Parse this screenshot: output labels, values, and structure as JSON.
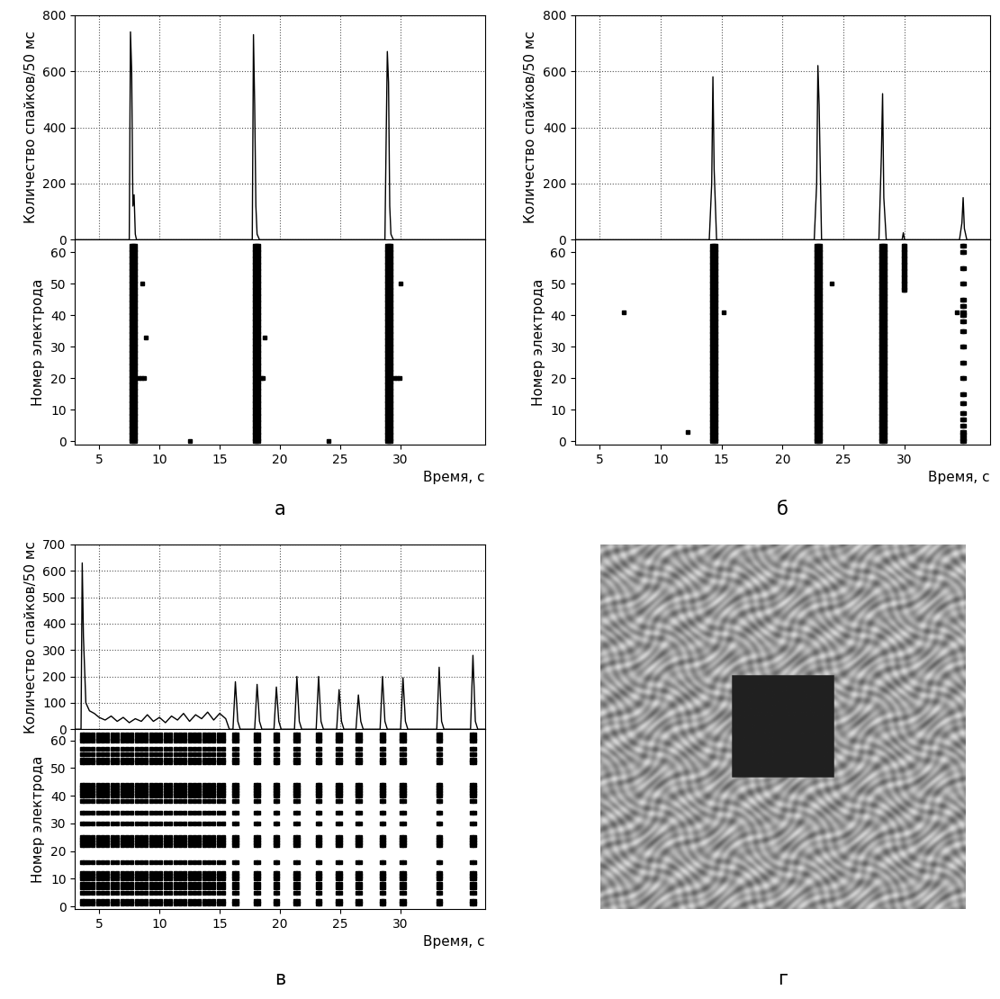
{
  "chart_data": [
    {
      "type": "raster",
      "label": "а",
      "xlabel": "Время, с",
      "xlim": [
        3,
        37
      ],
      "xticks": [
        5,
        10,
        15,
        20,
        25,
        30
      ],
      "histogram": {
        "ylabel": "Количество спайков/50 мс",
        "color": "#000000",
        "grid": true,
        "ylim": [
          0,
          800
        ],
        "yticks": [
          0,
          200,
          400,
          600,
          800
        ],
        "x": [
          3,
          7.5,
          7.6,
          7.7,
          7.8,
          7.9,
          8.0,
          8.1,
          8.3,
          17.7,
          17.8,
          17.9,
          18.0,
          18.1,
          18.3,
          28.7,
          28.8,
          28.9,
          29.0,
          29.1,
          29.2,
          29.4,
          37
        ],
        "values": [
          0,
          0,
          740,
          600,
          120,
          160,
          20,
          0,
          0,
          0,
          730,
          480,
          120,
          20,
          0,
          0,
          350,
          670,
          560,
          120,
          20,
          0,
          0
        ]
      },
      "raster": {
        "ylabel": "Номер электрода",
        "color": "#000000",
        "marker": "square",
        "ylim": [
          -1,
          64
        ],
        "yticks": [
          0,
          10,
          20,
          30,
          40,
          50,
          60
        ],
        "groups": [
          {
            "electrodes": [
              0,
              1,
              2,
              3,
              4,
              5,
              6,
              7,
              8,
              9,
              10,
              11,
              12,
              13,
              14,
              15,
              16,
              17,
              18,
              19,
              20,
              21,
              22,
              23,
              24,
              25,
              26,
              27,
              28,
              29,
              30,
              31,
              32,
              33,
              34,
              35,
              36,
              37,
              38,
              39,
              40,
              41,
              42,
              43,
              44,
              45,
              46,
              47,
              48,
              49,
              50,
              51,
              52,
              53,
              54,
              55,
              56,
              57,
              58,
              59,
              60,
              61,
              62
            ],
            "times": [
              7.7,
              7.85,
              8.0,
              17.9,
              18.05,
              18.2,
              28.9,
              29.05,
              29.2
            ]
          },
          {
            "electrodes": [
              20
            ],
            "times": [
              8.3,
              8.5,
              8.7,
              18.4,
              18.6,
              29.5,
              29.7,
              29.9
            ]
          },
          {
            "electrodes": [
              50
            ],
            "times": [
              8.6,
              30.0
            ]
          },
          {
            "electrodes": [
              33
            ],
            "times": [
              8.9,
              18.7
            ]
          },
          {
            "electrodes": [
              0
            ],
            "times": [
              12.5,
              24.0
            ]
          }
        ]
      }
    },
    {
      "type": "raster",
      "label": "б",
      "xlabel": "Время, с",
      "xlim": [
        3,
        37
      ],
      "xticks": [
        5,
        10,
        15,
        20,
        25,
        30
      ],
      "histogram": {
        "ylabel": "Количество спайков/50 мс",
        "color": "#000000",
        "grid": true,
        "ylim": [
          0,
          800
        ],
        "yticks": [
          0,
          200,
          400,
          600,
          800
        ],
        "x": [
          3,
          14.0,
          14.2,
          14.3,
          14.4,
          14.6,
          22.6,
          22.8,
          22.9,
          23.0,
          23.2,
          27.9,
          28.1,
          28.2,
          28.3,
          28.5,
          29.8,
          29.9,
          30.0,
          34.5,
          34.7,
          34.8,
          34.9,
          35.1,
          37
        ],
        "values": [
          0,
          0,
          200,
          580,
          250,
          0,
          0,
          200,
          620,
          480,
          0,
          0,
          300,
          520,
          150,
          0,
          0,
          25,
          0,
          0,
          60,
          150,
          40,
          0,
          0
        ]
      },
      "raster": {
        "ylabel": "Номер электрода",
        "color": "#000000",
        "marker": "square",
        "ylim": [
          -1,
          64
        ],
        "yticks": [
          0,
          10,
          20,
          30,
          40,
          50,
          60
        ],
        "groups": [
          {
            "electrodes": [
              0,
              1,
              2,
              3,
              4,
              5,
              6,
              7,
              8,
              9,
              10,
              11,
              12,
              13,
              14,
              15,
              16,
              17,
              18,
              19,
              20,
              21,
              22,
              23,
              24,
              25,
              26,
              27,
              28,
              29,
              30,
              31,
              32,
              33,
              34,
              35,
              36,
              37,
              38,
              39,
              40,
              41,
              42,
              43,
              44,
              45,
              46,
              47,
              48,
              49,
              50,
              51,
              52,
              53,
              54,
              55,
              56,
              57,
              58,
              59,
              60,
              61,
              62
            ],
            "times": [
              14.2,
              14.35,
              14.5,
              22.8,
              22.95,
              23.1,
              28.1,
              28.25,
              28.4
            ]
          },
          {
            "electrodes": [
              0,
              1,
              2,
              3,
              5,
              7,
              9,
              12,
              15,
              20,
              25,
              30,
              35,
              38,
              40,
              41,
              43,
              45,
              50,
              55,
              60,
              62
            ],
            "times": [
              34.7,
              34.85
            ]
          },
          {
            "electrodes": [
              48,
              49,
              50,
              51,
              52,
              53,
              54,
              55,
              56,
              57,
              58,
              59,
              60,
              61,
              62
            ],
            "times": [
              29.9,
              30.0
            ]
          },
          {
            "electrodes": [
              41
            ],
            "times": [
              7.0,
              15.2,
              34.3
            ]
          },
          {
            "electrodes": [
              3
            ],
            "times": [
              12.2
            ]
          },
          {
            "electrodes": [
              50
            ],
            "times": [
              24.0
            ]
          }
        ]
      }
    },
    {
      "type": "raster",
      "label": "в",
      "xlabel": "Время, с",
      "xlim": [
        3,
        37
      ],
      "xticks": [
        5,
        10,
        15,
        20,
        25,
        30
      ],
      "histogram": {
        "ylabel": "Количество спайков/50 мс",
        "color": "#000000",
        "grid": true,
        "ylim": [
          0,
          700
        ],
        "yticks": [
          0,
          100,
          200,
          300,
          400,
          500,
          600,
          700
        ],
        "x": [
          3,
          3.5,
          3.6,
          3.7,
          3.9,
          4.2,
          4.6,
          5.0,
          5.5,
          6.0,
          6.5,
          7.0,
          7.5,
          8.0,
          8.5,
          9.0,
          9.5,
          10.0,
          10.5,
          11.0,
          11.5,
          12.0,
          12.5,
          13.0,
          13.5,
          14.0,
          14.5,
          15.0,
          15.5,
          15.8,
          16.1,
          16.3,
          16.5,
          16.7,
          17.9,
          18.1,
          18.3,
          18.5,
          19.5,
          19.7,
          19.9,
          20.1,
          21.2,
          21.4,
          21.6,
          21.8,
          23.0,
          23.2,
          23.4,
          23.6,
          24.7,
          24.9,
          25.1,
          25.3,
          26.3,
          26.5,
          26.7,
          26.9,
          28.3,
          28.5,
          28.7,
          28.9,
          30.0,
          30.2,
          30.4,
          30.6,
          33.0,
          33.2,
          33.4,
          33.6,
          35.8,
          36.0,
          36.2,
          36.4,
          37
        ],
        "values": [
          0,
          0,
          630,
          350,
          100,
          70,
          60,
          45,
          35,
          50,
          30,
          45,
          25,
          40,
          30,
          55,
          30,
          45,
          25,
          50,
          35,
          60,
          30,
          55,
          40,
          65,
          35,
          60,
          40,
          0,
          0,
          180,
          30,
          0,
          0,
          170,
          30,
          0,
          0,
          160,
          30,
          0,
          0,
          200,
          30,
          0,
          0,
          200,
          30,
          0,
          0,
          150,
          30,
          0,
          0,
          130,
          30,
          0,
          0,
          200,
          30,
          0,
          0,
          195,
          30,
          0,
          0,
          235,
          30,
          0,
          0,
          280,
          30,
          0,
          0
        ]
      },
      "raster": {
        "ylabel": "Номер электрода",
        "color": "#000000",
        "marker": "square",
        "ylim": [
          -1,
          64
        ],
        "yticks": [
          0,
          10,
          20,
          30,
          40,
          50,
          60
        ],
        "groups": [
          {
            "electrodes": [
              1,
              2,
              5,
              7,
              8,
              10,
              11,
              12,
              16,
              22,
              23,
              24,
              25,
              30,
              34,
              38,
              40,
              41,
              42,
              43,
              44,
              52,
              53,
              55,
              57,
              60,
              61,
              62
            ],
            "times": [
              3.6,
              3.8,
              4.1,
              4.5,
              4.9,
              5.3,
              5.7,
              6.1,
              6.5,
              6.9,
              7.3,
              7.7,
              8.1,
              8.5,
              8.9,
              9.3,
              9.7,
              10.1,
              10.5,
              10.9,
              11.3,
              11.7,
              12.1,
              12.5,
              12.9,
              13.3,
              13.7,
              14.1,
              14.5,
              14.9,
              15.3,
              16.2,
              16.4,
              18.0,
              18.2,
              19.6,
              19.8,
              21.3,
              21.5,
              23.1,
              23.3,
              24.8,
              25.0,
              26.4,
              26.6,
              28.4,
              28.6,
              30.1,
              30.3,
              33.1,
              33.3,
              35.9,
              36.1
            ]
          }
        ]
      }
    },
    {
      "type": "image",
      "label": "г"
    }
  ]
}
